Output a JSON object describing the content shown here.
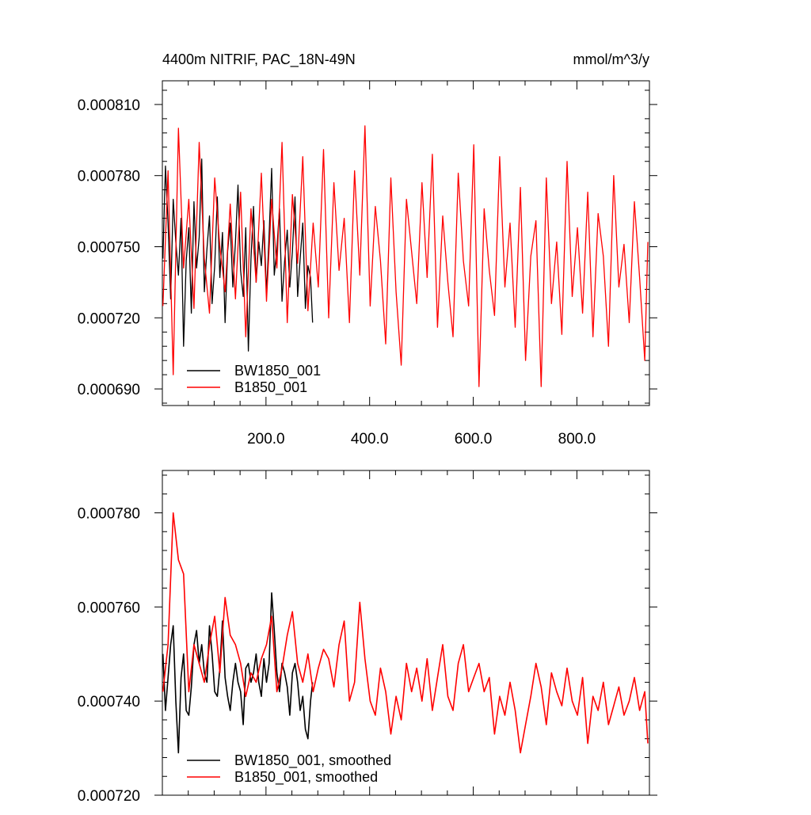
{
  "chart_data": [
    {
      "type": "line",
      "title_left": "4400m NITRIF, PAC_18N-49N",
      "title_right": "mmol/m^3/y",
      "xlim": [
        0,
        940
      ],
      "ylim": [
        0.000683,
        0.00082
      ],
      "x_ticks": [
        200,
        400,
        600,
        800
      ],
      "x_tick_labels": [
        "200.0",
        "400.0",
        "600.0",
        "800.0"
      ],
      "y_ticks": [
        0.00069,
        0.00072,
        0.00075,
        0.00078,
        0.00081
      ],
      "y_tick_labels": [
        "0.000690",
        "0.000720",
        "0.000750",
        "0.000780",
        "0.000810"
      ],
      "grid": false,
      "legend_position": "bottom-left",
      "series": [
        {
          "name": "BW1850_001",
          "color": "#000000",
          "x": [
            1,
            6,
            11,
            16,
            21,
            26,
            31,
            36,
            41,
            46,
            51,
            56,
            61,
            66,
            71,
            76,
            81,
            86,
            91,
            96,
            101,
            106,
            111,
            116,
            121,
            126,
            131,
            136,
            141,
            146,
            151,
            156,
            161,
            166,
            171,
            176,
            181,
            186,
            191,
            196,
            201,
            206,
            211,
            216,
            221,
            226,
            231,
            236,
            241,
            246,
            251,
            256,
            261,
            266,
            271,
            276,
            281,
            286,
            290
          ],
          "values": [
            0.000745,
            0.000784,
            0.00076,
            0.000728,
            0.00077,
            0.000752,
            0.000738,
            0.000762,
            0.000708,
            0.000744,
            0.000758,
            0.000722,
            0.000769,
            0.000741,
            0.000754,
            0.000787,
            0.000731,
            0.000749,
            0.000763,
            0.000726,
            0.000742,
            0.000771,
            0.000737,
            0.000756,
            0.000718,
            0.000748,
            0.00076,
            0.000733,
            0.000752,
            0.000776,
            0.00074,
            0.000729,
            0.000758,
            0.000706,
            0.000745,
            0.000767,
            0.000735,
            0.000752,
            0.000742,
            0.000761,
            0.00073,
            0.000755,
            0.000783,
            0.000738,
            0.000749,
            0.000766,
            0.000727,
            0.000744,
            0.000757,
            0.000733,
            0.000748,
            0.000771,
            0.000729,
            0.000745,
            0.00076,
            0.000724,
            0.000742,
            0.000737,
            0.000718
          ]
        },
        {
          "name": "B1850_001",
          "color": "#ff0000",
          "x": [
            1,
            11,
            21,
            31,
            41,
            51,
            61,
            71,
            81,
            91,
            101,
            111,
            121,
            131,
            141,
            151,
            161,
            171,
            181,
            191,
            201,
            211,
            221,
            231,
            241,
            251,
            261,
            271,
            281,
            291,
            301,
            311,
            321,
            331,
            341,
            351,
            361,
            371,
            381,
            391,
            401,
            411,
            421,
            431,
            441,
            451,
            461,
            471,
            481,
            491,
            501,
            511,
            521,
            531,
            541,
            551,
            561,
            571,
            581,
            591,
            601,
            611,
            621,
            631,
            641,
            651,
            661,
            671,
            681,
            691,
            701,
            711,
            721,
            731,
            741,
            751,
            761,
            771,
            781,
            791,
            801,
            811,
            821,
            831,
            841,
            851,
            861,
            871,
            881,
            891,
            901,
            911,
            921,
            931,
            937
          ],
          "values": [
            0.000725,
            0.000782,
            0.000696,
            0.0008,
            0.000741,
            0.00077,
            0.000724,
            0.000794,
            0.000745,
            0.000722,
            0.000779,
            0.00075,
            0.000731,
            0.000768,
            0.000728,
            0.000773,
            0.000712,
            0.000766,
            0.000735,
            0.000781,
            0.000727,
            0.00077,
            0.000741,
            0.000794,
            0.000718,
            0.000772,
            0.000743,
            0.000788,
            0.000723,
            0.00076,
            0.000733,
            0.000791,
            0.00072,
            0.000777,
            0.00074,
            0.000762,
            0.000718,
            0.000782,
            0.000738,
            0.000801,
            0.000725,
            0.000767,
            0.000744,
            0.000709,
            0.000779,
            0.000731,
            0.0007,
            0.00077,
            0.000748,
            0.000726,
            0.000777,
            0.000737,
            0.000789,
            0.000716,
            0.000763,
            0.000735,
            0.000712,
            0.000781,
            0.000744,
            0.000725,
            0.000793,
            0.000691,
            0.000766,
            0.00074,
            0.000721,
            0.000788,
            0.000733,
            0.00076,
            0.000716,
            0.000775,
            0.000702,
            0.000746,
            0.000761,
            0.000691,
            0.000779,
            0.000726,
            0.000752,
            0.000713,
            0.000786,
            0.000729,
            0.000758,
            0.000722,
            0.000773,
            0.000712,
            0.000764,
            0.000746,
            0.000708,
            0.00078,
            0.000733,
            0.000751,
            0.000718,
            0.000769,
            0.000737,
            0.000702,
            0.000752
          ]
        }
      ]
    },
    {
      "type": "line",
      "xlim": [
        0,
        940
      ],
      "ylim": [
        0.00072,
        0.000789
      ],
      "y_ticks": [
        0.00072,
        0.00074,
        0.00076,
        0.00078
      ],
      "y_tick_labels": [
        "0.000720",
        "0.000740",
        "0.000760",
        "0.000780"
      ],
      "grid": false,
      "legend_position": "bottom-left",
      "series": [
        {
          "name": "BW1850_001, smoothed",
          "color": "#000000",
          "x": [
            1,
            6,
            11,
            16,
            21,
            26,
            31,
            36,
            41,
            46,
            51,
            56,
            61,
            66,
            71,
            76,
            81,
            86,
            91,
            96,
            101,
            106,
            111,
            116,
            121,
            126,
            131,
            136,
            141,
            146,
            151,
            156,
            161,
            166,
            171,
            176,
            181,
            186,
            191,
            196,
            201,
            206,
            211,
            216,
            221,
            226,
            231,
            236,
            241,
            246,
            251,
            256,
            261,
            266,
            271,
            276,
            281,
            286,
            290
          ],
          "values": [
            0.00075,
            0.000738,
            0.000745,
            0.000752,
            0.000756,
            0.00074,
            0.000729,
            0.000745,
            0.00075,
            0.000738,
            0.000737,
            0.000743,
            0.000752,
            0.000755,
            0.000748,
            0.000752,
            0.000746,
            0.000744,
            0.000756,
            0.00075,
            0.000742,
            0.000741,
            0.000747,
            0.000757,
            0.000745,
            0.000741,
            0.000738,
            0.000744,
            0.000748,
            0.000744,
            0.000742,
            0.000735,
            0.000747,
            0.000748,
            0.000744,
            0.000746,
            0.00075,
            0.000744,
            0.000741,
            0.000749,
            0.000744,
            0.000748,
            0.000763,
            0.000755,
            0.000746,
            0.000742,
            0.000748,
            0.000746,
            0.000743,
            0.000737,
            0.000746,
            0.000748,
            0.000744,
            0.000738,
            0.000741,
            0.000734,
            0.000732,
            0.00074,
            0.000744
          ]
        },
        {
          "name": "B1850_001, smoothed",
          "color": "#ff0000",
          "x": [
            1,
            11,
            21,
            31,
            41,
            51,
            61,
            71,
            81,
            91,
            101,
            111,
            121,
            131,
            141,
            151,
            161,
            171,
            181,
            191,
            201,
            211,
            221,
            231,
            241,
            251,
            261,
            271,
            281,
            291,
            301,
            311,
            321,
            331,
            341,
            351,
            361,
            371,
            381,
            391,
            401,
            411,
            421,
            431,
            441,
            451,
            461,
            471,
            481,
            491,
            501,
            511,
            521,
            531,
            541,
            551,
            561,
            571,
            581,
            591,
            601,
            611,
            621,
            631,
            641,
            651,
            661,
            671,
            681,
            691,
            701,
            711,
            721,
            731,
            741,
            751,
            761,
            771,
            781,
            791,
            801,
            811,
            821,
            831,
            841,
            851,
            861,
            871,
            881,
            891,
            901,
            911,
            921,
            931,
            937
          ],
          "values": [
            0.000742,
            0.000752,
            0.00078,
            0.00077,
            0.000767,
            0.000742,
            0.000752,
            0.000748,
            0.000744,
            0.000752,
            0.000758,
            0.000746,
            0.000762,
            0.000754,
            0.000752,
            0.000748,
            0.000741,
            0.000746,
            0.000744,
            0.000749,
            0.000752,
            0.000758,
            0.000742,
            0.000747,
            0.000754,
            0.000759,
            0.000748,
            0.000744,
            0.00075,
            0.000742,
            0.000747,
            0.000751,
            0.000749,
            0.000743,
            0.000752,
            0.000757,
            0.00074,
            0.000744,
            0.000761,
            0.000749,
            0.00074,
            0.000737,
            0.000747,
            0.000742,
            0.000733,
            0.000741,
            0.000736,
            0.000748,
            0.000742,
            0.000747,
            0.00074,
            0.000749,
            0.000738,
            0.000745,
            0.000752,
            0.000741,
            0.000738,
            0.000748,
            0.000752,
            0.000742,
            0.000745,
            0.000748,
            0.000742,
            0.000745,
            0.000733,
            0.000741,
            0.000737,
            0.000744,
            0.000738,
            0.000729,
            0.000735,
            0.000741,
            0.000748,
            0.000743,
            0.000735,
            0.000746,
            0.000742,
            0.000739,
            0.000747,
            0.00074,
            0.000737,
            0.000745,
            0.000731,
            0.000741,
            0.000738,
            0.000744,
            0.000735,
            0.000739,
            0.000743,
            0.000737,
            0.00074,
            0.000745,
            0.000738,
            0.000742,
            0.000731
          ]
        }
      ]
    }
  ]
}
